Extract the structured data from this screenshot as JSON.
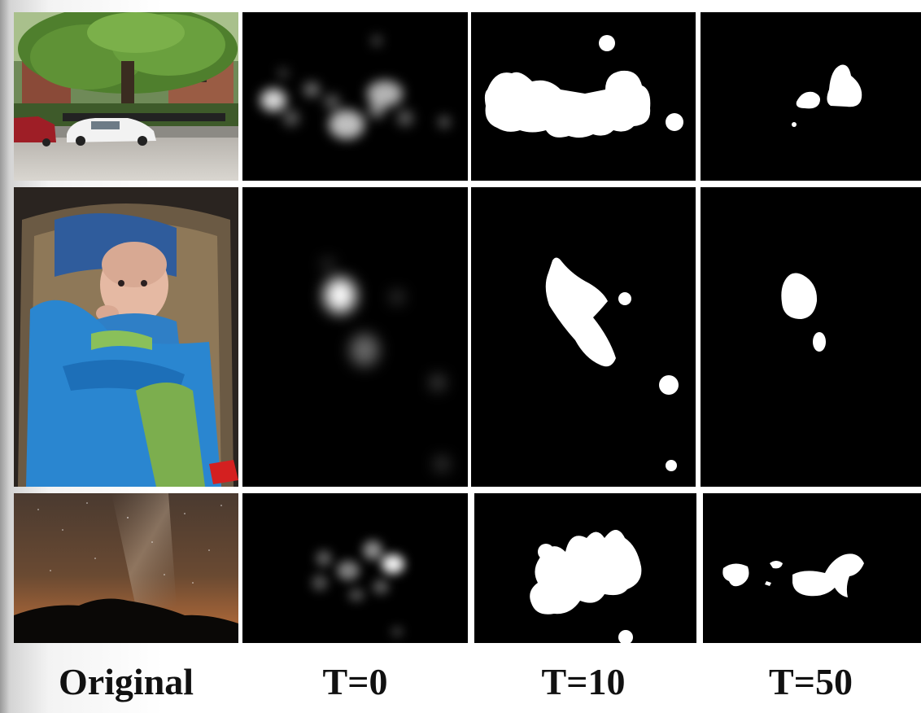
{
  "columns": [
    {
      "label": "Original"
    },
    {
      "label": "T=0"
    },
    {
      "label": "T=10"
    },
    {
      "label": "T=50"
    }
  ],
  "rows": [
    {
      "subject": "street scene with tree and parked cars"
    },
    {
      "subject": "baby in car seat with blue blanket"
    },
    {
      "subject": "night sky with stars over mountain silhouette"
    }
  ]
}
